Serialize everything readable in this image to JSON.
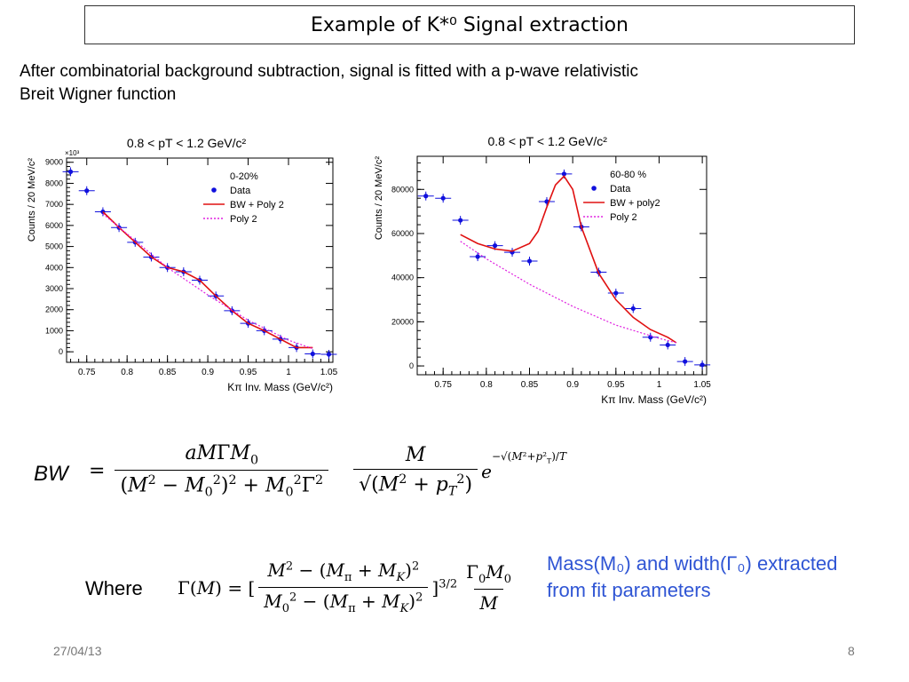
{
  "slide": {
    "title": "Example of K*⁰ Signal extraction",
    "intro_line1": "After combinatorial background subtraction, signal is fitted with a p-wave relativistic",
    "intro_line2": "Breit Wigner function",
    "bw_label": "BW",
    "where_label": "Where",
    "note_line1": "Mass(M₀) and width(Γ₀) extracted",
    "note_line2": "from fit parameters",
    "footer_date": "27/04/13",
    "page_number": "8"
  },
  "equations": {
    "bw_num": "aMΓM₀",
    "bw_den": "(M² − M₀²)² + M₀²Γ²",
    "bw_num2": "M",
    "bw_den2": "√(M² + p_T²)",
    "bw_exp": "e^(−√(M²+p_T²)/T)",
    "gamma_lhs": "Γ(M) = [",
    "gamma_num": "M² − (M_π + M_K)²",
    "gamma_den": "M₀² − (M_π + M_K)²",
    "gamma_pow": "]^3/2",
    "gamma_num2": "Γ₀M₀",
    "gamma_den2": "M"
  },
  "chart_data": [
    {
      "type": "scatter",
      "title": "0.8 < pT < 1.2 GeV/c²",
      "xlabel": "Kπ Inv. Mass (GeV/c²)",
      "ylabel": "Counts / 20 MeV/c²",
      "y_multiplier": "×10³",
      "xlim": [
        0.725,
        1.055
      ],
      "ylim": [
        -500,
        9200
      ],
      "xticks": [
        0.75,
        0.8,
        0.85,
        0.9,
        0.95,
        1.0,
        1.05
      ],
      "xtick_labels": [
        "0.75",
        "0.8",
        "0.85",
        "0.9",
        "0.95",
        "1",
        "1.05"
      ],
      "yticks": [
        0,
        1000,
        2000,
        3000,
        4000,
        5000,
        6000,
        7000,
        8000,
        9000
      ],
      "ytick_labels": [
        "0",
        "1000",
        "2000",
        "3000",
        "4000",
        "5000",
        "6000",
        "7000",
        "8000",
        "9000"
      ],
      "legend_header": "0-20%",
      "legend_position": "top-right",
      "series": [
        {
          "name": "Data",
          "kind": "points",
          "color": "#1010dd",
          "x": [
            0.73,
            0.75,
            0.77,
            0.79,
            0.81,
            0.83,
            0.85,
            0.87,
            0.89,
            0.91,
            0.93,
            0.95,
            0.97,
            0.99,
            1.01,
            1.03,
            1.05
          ],
          "y": [
            8550,
            7650,
            6650,
            5900,
            5200,
            4500,
            4000,
            3800,
            3400,
            2650,
            1950,
            1350,
            1000,
            600,
            200,
            -100,
            -120
          ]
        },
        {
          "name": "BW + Poly 2",
          "kind": "line",
          "color": "#e01010",
          "x": [
            0.77,
            0.79,
            0.81,
            0.83,
            0.85,
            0.87,
            0.89,
            0.91,
            0.93,
            0.95,
            0.97,
            0.99,
            1.01,
            1.03
          ],
          "y": [
            6650,
            5900,
            5200,
            4500,
            4000,
            3800,
            3400,
            2650,
            1950,
            1350,
            1000,
            600,
            200,
            200
          ]
        },
        {
          "name": "Poly 2",
          "kind": "dotted",
          "color": "#e020e0",
          "x": [
            0.77,
            0.8,
            0.85,
            0.9,
            0.95,
            1.0,
            1.03
          ],
          "y": [
            6550,
            5600,
            4000,
            2700,
            1500,
            550,
            150
          ]
        }
      ]
    },
    {
      "type": "scatter",
      "title": "0.8 < pT < 1.2 GeV/c²",
      "xlabel": "Kπ Inv. Mass (GeV/c²)",
      "ylabel": "Counts / 20 MeV/c²",
      "xlim": [
        0.72,
        1.055
      ],
      "ylim": [
        -4000,
        95000
      ],
      "xticks": [
        0.75,
        0.8,
        0.85,
        0.9,
        0.95,
        1.0,
        1.05
      ],
      "xtick_labels": [
        "0.75",
        "0.8",
        "0.85",
        "0.9",
        "0.95",
        "1",
        "1.05"
      ],
      "yticks": [
        0,
        20000,
        40000,
        60000,
        80000
      ],
      "ytick_labels": [
        "0",
        "20000",
        "40000",
        "60000",
        "80000"
      ],
      "legend_header": "60-80 %",
      "legend_position": "top-right",
      "series": [
        {
          "name": "Data",
          "kind": "points",
          "color": "#1010dd",
          "x": [
            0.73,
            0.75,
            0.77,
            0.79,
            0.81,
            0.83,
            0.85,
            0.87,
            0.89,
            0.91,
            0.93,
            0.95,
            0.97,
            0.99,
            1.01,
            1.03,
            1.05
          ],
          "y": [
            77000,
            76000,
            66000,
            49500,
            54500,
            51500,
            47500,
            74500,
            87000,
            63000,
            42500,
            33000,
            26000,
            13000,
            9500,
            2000,
            500
          ]
        },
        {
          "name": "BW + poly2",
          "kind": "line",
          "color": "#e01010",
          "x": [
            0.77,
            0.79,
            0.81,
            0.83,
            0.85,
            0.86,
            0.87,
            0.88,
            0.89,
            0.9,
            0.91,
            0.93,
            0.95,
            0.97,
            0.99,
            1.01,
            1.02
          ],
          "y": [
            59500,
            55500,
            53000,
            52000,
            55500,
            61000,
            72000,
            82000,
            86000,
            80000,
            63000,
            42000,
            30000,
            22000,
            16500,
            13000,
            10500
          ]
        },
        {
          "name": "Poly 2",
          "kind": "dotted",
          "color": "#e020e0",
          "x": [
            0.77,
            0.8,
            0.85,
            0.9,
            0.95,
            1.0,
            1.02
          ],
          "y": [
            56500,
            48500,
            37000,
            27000,
            18500,
            12500,
            10500
          ]
        }
      ]
    }
  ]
}
